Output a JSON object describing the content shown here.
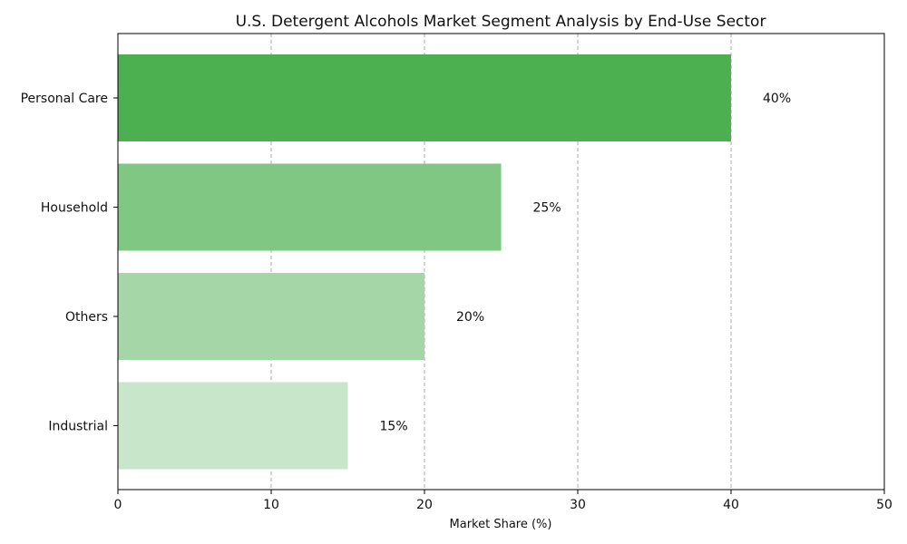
{
  "chart_data": {
    "type": "bar",
    "orientation": "horizontal",
    "title": "U.S. Detergent Alcohols Market Segment Analysis by End-Use Sector",
    "xlabel": "Market Share (%)",
    "ylabel": "",
    "categories": [
      "Personal Care",
      "Household",
      "Others",
      "Industrial"
    ],
    "values": [
      40,
      25,
      20,
      15
    ],
    "data_labels": [
      "40%",
      "25%",
      "20%",
      "15%"
    ],
    "colors": [
      "#4caf50",
      "#81c784",
      "#a5d6a7",
      "#c8e6c9"
    ],
    "xlim": [
      0,
      50
    ],
    "xticks": [
      0,
      10,
      20,
      30,
      40,
      50
    ],
    "grid": "x-dashed",
    "legend": "none"
  }
}
